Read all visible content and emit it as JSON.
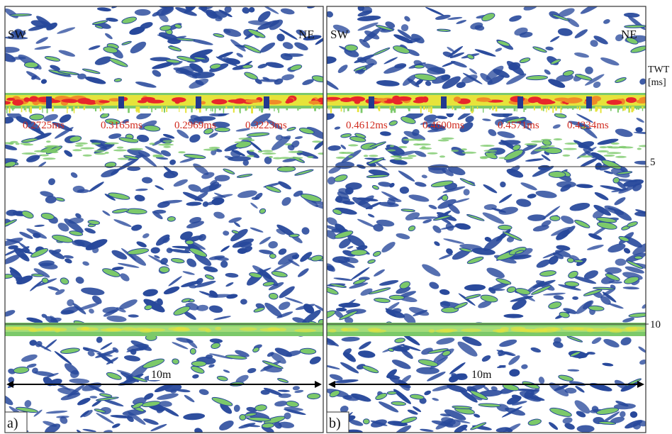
{
  "axis": {
    "unit_line1": "TWT",
    "unit_line2": "[ms]",
    "ticks": [
      "5",
      "10"
    ]
  },
  "panels": [
    {
      "label": "a)",
      "left_dir": "SW",
      "right_dir": "NE",
      "times": [
        "0.2725ms",
        "0.3165ms",
        "0.2969ms",
        "0.3223ms"
      ],
      "scale_label": "10m"
    },
    {
      "label": "b)",
      "left_dir": "SW",
      "right_dir": "NE",
      "times": [
        "0.4612ms",
        "0.4600ms",
        "0.4571ms",
        "0.4334ms"
      ],
      "scale_label": "10m"
    }
  ],
  "colors": {
    "low": "#ffffff",
    "mid": "#27489b",
    "green": "#7cc96a",
    "yellow": "#e6e33a",
    "orange": "#f08a28",
    "red": "#e8262b",
    "marker": "#23398f",
    "time_text": "#d12a1e"
  }
}
